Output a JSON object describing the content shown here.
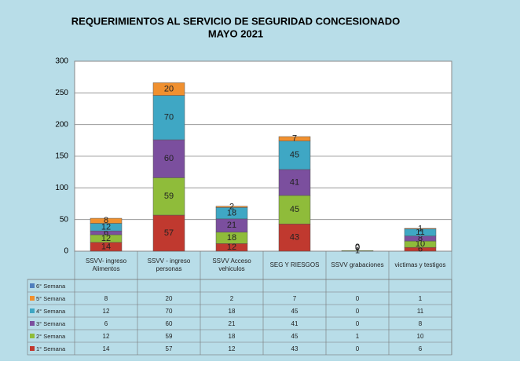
{
  "chart_data": {
    "type": "stacked_bar",
    "title": "REQUERIMIENTOS  AL SERVICIO DE SEGURIDAD  CONCESIONADO",
    "subtitle": "MAYO 2021",
    "categories": [
      "SSVV- ingreso Alimentos",
      "SSVV - ingreso personas",
      "SSVV Acceso vehiculos",
      "SEG Y RIESGOS",
      "SSVV grabaciones",
      "victimas y testigos"
    ],
    "series": [
      {
        "name": "1° Semana",
        "color": "#c0392f",
        "values": [
          14,
          57,
          12,
          43,
          0,
          6
        ]
      },
      {
        "name": "2° Semana",
        "color": "#8fbc3a",
        "values": [
          12,
          59,
          18,
          45,
          1,
          10
        ]
      },
      {
        "name": "3° Semana",
        "color": "#7b4f9e",
        "values": [
          6,
          60,
          21,
          41,
          0,
          8
        ]
      },
      {
        "name": "4° Semana",
        "color": "#3fa7c4",
        "values": [
          12,
          70,
          18,
          45,
          0,
          11
        ]
      },
      {
        "name": "5° Semana",
        "color": "#f0902f",
        "values": [
          8,
          20,
          2,
          7,
          0,
          1
        ]
      },
      {
        "name": "6° Semana",
        "color": "#4f7fbd",
        "values": [
          null,
          null,
          null,
          null,
          null,
          null
        ]
      }
    ],
    "ylim": [
      0,
      300
    ],
    "yticks": [
      0,
      50,
      100,
      150,
      200,
      250,
      300
    ],
    "grid": true
  }
}
